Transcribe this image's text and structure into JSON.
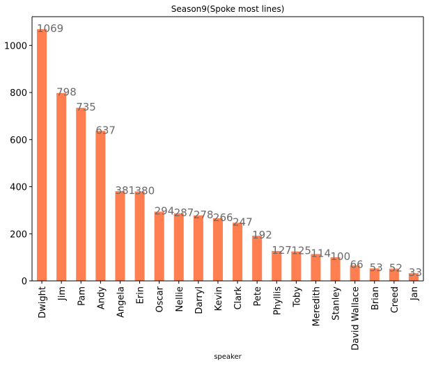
{
  "chart_data": {
    "type": "bar",
    "title": "Season9(Spoke most lines)",
    "xlabel": "speaker",
    "ylabel": "",
    "ylim": [
      0,
      1122
    ],
    "yticks": [
      0,
      200,
      400,
      600,
      800,
      1000
    ],
    "grid": false,
    "bar_color": "#ff7f50",
    "label_color": "#696969",
    "categories": [
      "Dwight",
      "Jim",
      "Pam",
      "Andy",
      "Angela",
      "Erin",
      "Oscar",
      "Nellie",
      "Darryl",
      "Kevin",
      "Clark",
      "Pete",
      "Phyllis",
      "Toby",
      "Meredith",
      "Stanley",
      "David Wallace",
      "Brian",
      "Creed",
      "Jan"
    ],
    "values": [
      1069,
      798,
      735,
      637,
      381,
      380,
      294,
      287,
      278,
      266,
      247,
      192,
      127,
      125,
      114,
      100,
      66,
      53,
      52,
      33
    ]
  }
}
